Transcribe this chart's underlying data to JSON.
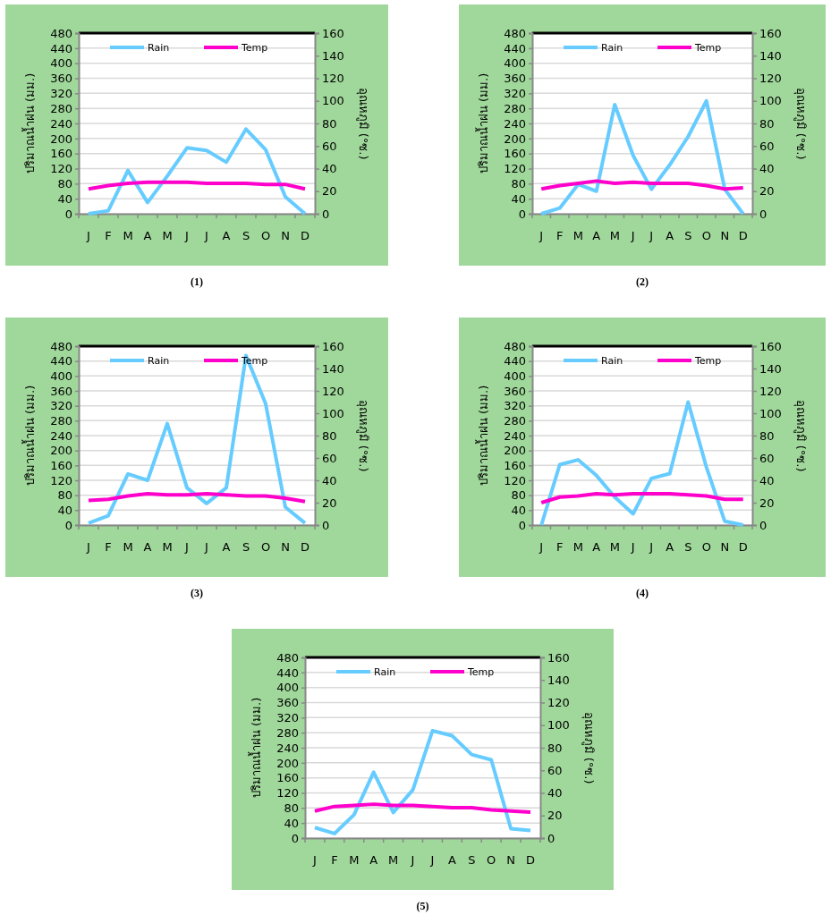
{
  "chart_data": [
    {
      "type": "line",
      "categories": [
        "J",
        "F",
        "M",
        "A",
        "M",
        "J",
        "J",
        "A",
        "S",
        "O",
        "N",
        "D"
      ],
      "ylabel": "ปริมาณน้ำฝน (มม.)",
      "y2label": "อุณหภูมิ (°ซ.)",
      "ylim": [
        0,
        480
      ],
      "yticks": [
        0,
        40,
        80,
        120,
        160,
        200,
        240,
        280,
        320,
        360,
        400,
        440,
        480
      ],
      "y2lim": [
        0,
        160
      ],
      "y2ticks": [
        0,
        20,
        40,
        60,
        80,
        100,
        120,
        140,
        160
      ],
      "grid": "y",
      "legend": "top",
      "annotations": [
        "(1)"
      ],
      "series": [
        {
          "name": "Rain",
          "color": "#66ccff",
          "values": [
            0,
            8,
            115,
            30,
            100,
            175,
            168,
            137,
            225,
            170,
            45,
            0
          ]
        },
        {
          "name": "Temp",
          "color": "#ff00cc",
          "axis": "y2",
          "values": [
            22,
            25,
            27,
            28,
            28,
            28,
            27,
            27,
            27,
            26,
            26,
            22
          ]
        }
      ]
    },
    {
      "type": "line",
      "categories": [
        "J",
        "F",
        "M",
        "A",
        "M",
        "J",
        "J",
        "A",
        "S",
        "O",
        "N",
        "D"
      ],
      "ylabel": "ปริมาณน้ำฝน (มม.)",
      "y2label": "อุณหภูมิ (°ซ.)",
      "ylim": [
        0,
        480
      ],
      "yticks": [
        0,
        40,
        80,
        120,
        160,
        200,
        240,
        280,
        320,
        360,
        400,
        440,
        480
      ],
      "y2lim": [
        0,
        160
      ],
      "y2ticks": [
        0,
        20,
        40,
        60,
        80,
        100,
        120,
        140,
        160
      ],
      "grid": "y",
      "legend": "top",
      "annotations": [
        "(2)"
      ],
      "series": [
        {
          "name": "Rain",
          "color": "#66ccff",
          "values": [
            0,
            15,
            78,
            60,
            290,
            155,
            65,
            130,
            205,
            300,
            65,
            0
          ]
        },
        {
          "name": "Temp",
          "color": "#ff00cc",
          "axis": "y2",
          "values": [
            22,
            25,
            27,
            29,
            27,
            28,
            27,
            27,
            27,
            25,
            22,
            23
          ]
        }
      ]
    },
    {
      "type": "line",
      "categories": [
        "J",
        "F",
        "M",
        "A",
        "M",
        "J",
        "J",
        "A",
        "S",
        "O",
        "N",
        "D"
      ],
      "ylabel": "ปริมาณน้ำฝน (มม.)",
      "y2label": "อุณหภูมิ (°ซ.)",
      "ylim": [
        0,
        480
      ],
      "yticks": [
        0,
        40,
        80,
        120,
        160,
        200,
        240,
        280,
        320,
        360,
        400,
        440,
        480
      ],
      "y2lim": [
        0,
        160
      ],
      "y2ticks": [
        0,
        20,
        40,
        60,
        80,
        100,
        120,
        140,
        160
      ],
      "grid": "y",
      "legend": "top",
      "annotations": [
        "(3)"
      ],
      "series": [
        {
          "name": "Rain",
          "color": "#66ccff",
          "values": [
            5,
            25,
            137,
            120,
            272,
            100,
            58,
            100,
            455,
            325,
            48,
            5
          ]
        },
        {
          "name": "Temp",
          "color": "#ff00cc",
          "axis": "y2",
          "values": [
            22,
            23,
            26,
            28,
            27,
            27,
            28,
            27,
            26,
            26,
            24,
            21
          ]
        }
      ]
    },
    {
      "type": "line",
      "categories": [
        "J",
        "F",
        "M",
        "A",
        "M",
        "J",
        "J",
        "A",
        "S",
        "O",
        "N",
        "D"
      ],
      "ylabel": "ปริมาณน้ำฝน (มม.)",
      "y2label": "อุณหภูมิ (°ซ.)",
      "ylim": [
        0,
        480
      ],
      "yticks": [
        0,
        40,
        80,
        120,
        160,
        200,
        240,
        280,
        320,
        360,
        400,
        440,
        480
      ],
      "y2lim": [
        0,
        160
      ],
      "y2ticks": [
        0,
        20,
        40,
        60,
        80,
        100,
        120,
        140,
        160
      ],
      "grid": "y",
      "legend": "top",
      "annotations": [
        "(4)"
      ],
      "series": [
        {
          "name": "Rain",
          "color": "#66ccff",
          "values": [
            0,
            162,
            175,
            133,
            75,
            30,
            125,
            138,
            330,
            155,
            10,
            0
          ]
        },
        {
          "name": "Temp",
          "color": "#ff00cc",
          "axis": "y2",
          "values": [
            20,
            25,
            26,
            28,
            27,
            28,
            28,
            28,
            27,
            26,
            23,
            23
          ]
        }
      ]
    },
    {
      "type": "line",
      "categories": [
        "J",
        "F",
        "M",
        "A",
        "M",
        "J",
        "J",
        "A",
        "S",
        "O",
        "N",
        "D"
      ],
      "ylabel": "ปริมาณน้ำฝน (มม.)",
      "y2label": "อุณหภูมิ (°ซ.)",
      "ylim": [
        0,
        480
      ],
      "yticks": [
        0,
        40,
        80,
        120,
        160,
        200,
        240,
        280,
        320,
        360,
        400,
        440,
        480
      ],
      "y2lim": [
        0,
        160
      ],
      "y2ticks": [
        0,
        20,
        40,
        60,
        80,
        100,
        120,
        140,
        160
      ],
      "grid": "y",
      "legend": "top",
      "annotations": [
        "(5)"
      ],
      "series": [
        {
          "name": "Rain",
          "color": "#66ccff",
          "values": [
            28,
            12,
            62,
            175,
            68,
            128,
            285,
            272,
            222,
            208,
            25,
            20
          ]
        },
        {
          "name": "Temp",
          "color": "#ff00cc",
          "axis": "y2",
          "values": [
            24,
            28,
            29,
            30,
            29,
            29,
            28,
            27,
            27,
            25,
            24,
            23
          ]
        }
      ]
    }
  ]
}
